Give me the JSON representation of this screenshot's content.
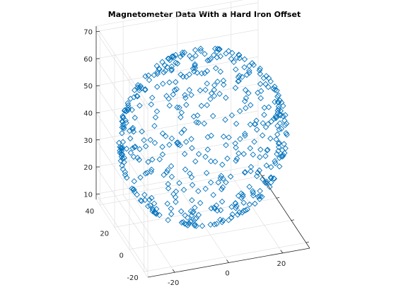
{
  "chart_data": {
    "type": "scatter",
    "title": "Magnetometer Data With a Hard Iron Offset",
    "xlabel": "",
    "ylabel": "",
    "zlabel": "",
    "marker": "diamond",
    "marker_color": "#0072BD",
    "grid": true,
    "xlim": [
      -30,
      30
    ],
    "ylim": [
      -25,
      45
    ],
    "zlim": [
      8,
      72
    ],
    "x_ticks": [
      -20,
      0,
      20
    ],
    "y_ticks": [
      -20,
      0,
      20,
      40
    ],
    "z_ticks": [
      10,
      20,
      30,
      40,
      50,
      60,
      70
    ],
    "x_tick_labels": [
      "-20",
      "0",
      "20"
    ],
    "y_tick_labels": [
      "-20",
      "0",
      "20",
      "40"
    ],
    "z_tick_labels": [
      "10",
      "20",
      "30",
      "40",
      "50",
      "60",
      "70"
    ],
    "sphere_center": [
      0,
      10,
      40
    ],
    "sphere_radius": 30,
    "sample_count": 500,
    "series": [
      {
        "color": "#0072BD"
      }
    ]
  }
}
